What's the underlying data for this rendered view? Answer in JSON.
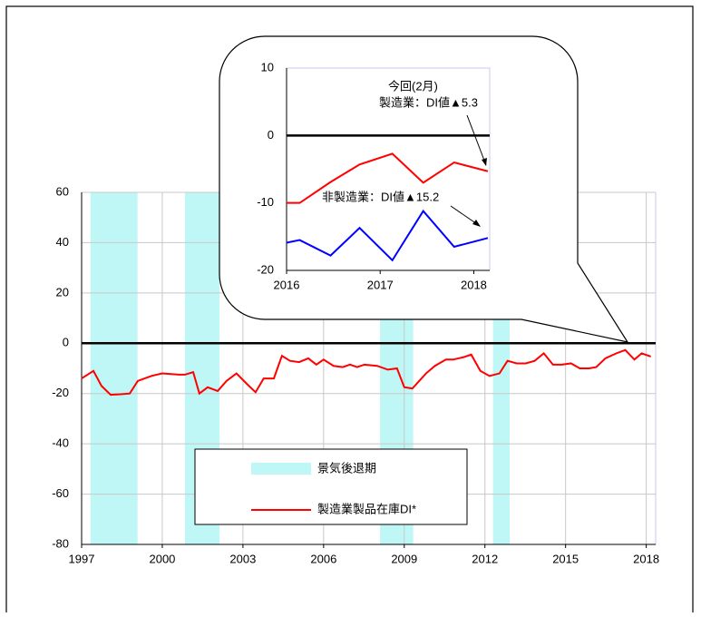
{
  "chart_data": [
    {
      "type": "line",
      "x": [
        1997.0,
        1997.44,
        1997.74,
        1998.08,
        1998.45,
        1998.79,
        1999.09,
        1999.6,
        2000.0,
        2000.61,
        2000.84,
        2001.15,
        2001.38,
        2001.69,
        2002.06,
        2002.39,
        2002.76,
        2003.13,
        2003.47,
        2003.77,
        2004.15,
        2004.45,
        2004.75,
        2005.09,
        2005.43,
        2005.73,
        2006.0,
        2006.37,
        2006.71,
        2006.98,
        2007.25,
        2007.52,
        2007.99,
        2008.39,
        2008.73,
        2009.0,
        2009.3,
        2009.81,
        2010.14,
        2010.55,
        2010.82,
        2011.22,
        2011.49,
        2011.83,
        2012.17,
        2012.54,
        2012.84,
        2013.18,
        2013.52,
        2013.85,
        2014.19,
        2014.53,
        2014.86,
        2015.2,
        2015.53,
        2015.87,
        2016.14,
        2016.48,
        2016.89,
        2017.22,
        2017.56,
        2017.83,
        2018.17
      ],
      "series": [
        {
          "name": "製造業製品在庫DI*",
          "color": "#ff0000",
          "values": [
            -14,
            -11,
            -17,
            -20.5,
            -20.3,
            -20,
            -15,
            -13,
            -12,
            -12.5,
            -12.5,
            -11.5,
            -20,
            -17.5,
            -19,
            -15,
            -12,
            -16,
            -19.5,
            -14,
            -14,
            -5,
            -7,
            -7.5,
            -6,
            -8.5,
            -6.5,
            -9,
            -9.5,
            -8.5,
            -9.5,
            -8.5,
            -9,
            -10.5,
            -10,
            -17.5,
            -18,
            -12,
            -9,
            -6.5,
            -6.5,
            -5.5,
            -4.5,
            -11,
            -13,
            -12,
            -7,
            -8,
            -8,
            -7,
            -4,
            -8.5,
            -8.5,
            -8,
            -10,
            -10,
            -9.5,
            -6,
            -4,
            -2.7,
            -6.5,
            -4,
            -5.3
          ]
        }
      ],
      "shaded_periods": {
        "name": "景気後退期",
        "color": "#bff6f6",
        "ranges": [
          [
            1997.33,
            1999.08
          ],
          [
            2000.84,
            2002.13
          ],
          [
            2008.1,
            2009.33
          ],
          [
            2012.3,
            2012.92
          ]
        ]
      },
      "xlim": [
        1997,
        2018.35
      ],
      "xticks": [
        1997,
        2000,
        2003,
        2006,
        2009,
        2012,
        2015,
        2018
      ],
      "ylim": [
        -80,
        60
      ],
      "yticks": [
        60,
        40,
        20,
        0,
        -20,
        -40,
        -60,
        -80
      ],
      "grid": true
    },
    {
      "type": "line",
      "series": [
        {
          "color": "#ff0000",
          "x": [
            2016.0,
            2016.14,
            2016.47,
            2016.78,
            2017.13,
            2017.46,
            2017.79,
            2018.15
          ],
          "values": [
            -10,
            -10,
            -6.9,
            -4.3,
            -2.7,
            -7,
            -4,
            -5.3
          ]
        },
        {
          "color": "#0000ff",
          "x": [
            2016.0,
            2016.14,
            2016.47,
            2016.78,
            2017.13,
            2017.46,
            2017.79,
            2018.15
          ],
          "values": [
            -15.9,
            -15.5,
            -17.8,
            -13.7,
            -18.5,
            -11.2,
            -16.5,
            -15.2
          ]
        }
      ],
      "annotations": [
        "今回(2月)",
        "製造業：DI値▲5.3",
        "非製造業：DI値▲15.2"
      ],
      "xlim": [
        2016,
        2018.17
      ],
      "xticks": [
        2016,
        2017,
        2018
      ],
      "ylim": [
        -20,
        10
      ],
      "yticks": [
        10,
        0,
        -10,
        -20
      ],
      "grid": false
    }
  ]
}
